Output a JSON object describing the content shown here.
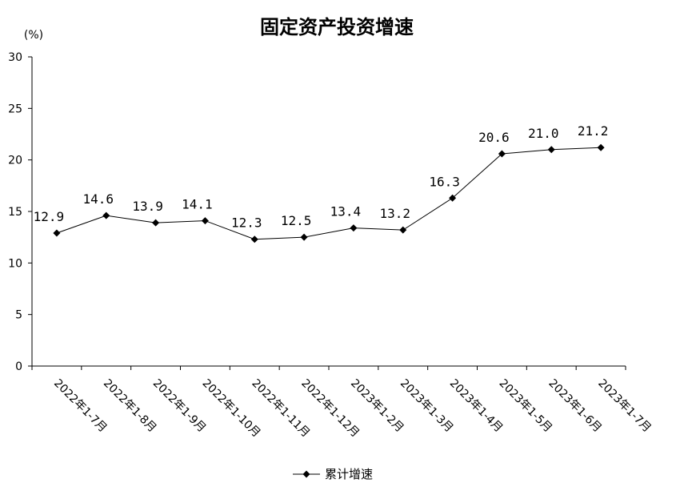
{
  "chart_data": {
    "type": "line",
    "title": "固定资产投资增速",
    "unit_label": "(%)",
    "categories": [
      "2022年1-7月",
      "2022年1-8月",
      "2022年1-9月",
      "2022年1-10月",
      "2022年1-11月",
      "2022年1-12月",
      "2023年1-2月",
      "2023年1-3月",
      "2023年1-4月",
      "2023年1-5月",
      "2023年1-6月",
      "2023年1-7月"
    ],
    "series": [
      {
        "name": "累计增速",
        "values": [
          12.9,
          14.6,
          13.9,
          14.1,
          12.3,
          12.5,
          13.4,
          13.2,
          16.3,
          20.6,
          21.0,
          21.2
        ],
        "labels": [
          "12.9",
          "14.6",
          "13.9",
          "14.1",
          "12.3",
          "12.5",
          "13.4",
          "13.2",
          "16.3",
          "20.6",
          "21.0",
          "21.2"
        ],
        "color": "#000000",
        "marker": "diamond"
      }
    ],
    "ylim": [
      0,
      30
    ],
    "yticks": [
      0,
      5,
      10,
      15,
      20,
      25,
      30
    ],
    "grid": false,
    "legend_position": "bottom-center"
  }
}
